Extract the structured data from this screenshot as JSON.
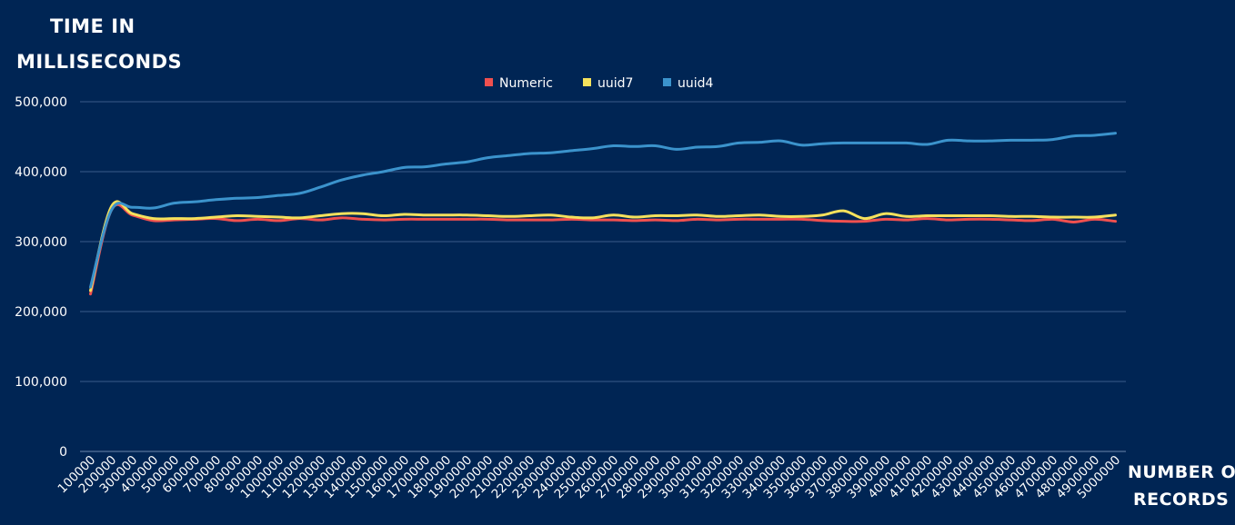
{
  "chart_data": {
    "type": "line",
    "ylabel_lines": [
      "TIME IN",
      "MILLISECONDS"
    ],
    "xlabel_lines": [
      "NUMBER OF",
      "RECORDS"
    ],
    "ylim": [
      0,
      500000
    ],
    "yticks": [
      0,
      100000,
      200000,
      300000,
      400000,
      500000
    ],
    "ytick_labels": [
      "0",
      "100,000",
      "200,000",
      "300,000",
      "400,000",
      "500,000"
    ],
    "grid": true,
    "legend_position": "top-center",
    "categories": [
      "100000",
      "200000",
      "300000",
      "400000",
      "500000",
      "600000",
      "700000",
      "800000",
      "900000",
      "1000000",
      "1100000",
      "1200000",
      "1300000",
      "1400000",
      "1500000",
      "1600000",
      "1700000",
      "1800000",
      "1900000",
      "2000000",
      "2100000",
      "2200000",
      "2300000",
      "2400000",
      "2500000",
      "2600000",
      "2700000",
      "2800000",
      "2900000",
      "3000000",
      "3100000",
      "3200000",
      "3300000",
      "3400000",
      "3500000",
      "3600000",
      "3700000",
      "3800000",
      "3900000",
      "4000000",
      "4100000",
      "4200000",
      "4300000",
      "4400000",
      "4500000",
      "4600000",
      "4700000",
      "4800000",
      "4900000",
      "5000000"
    ],
    "series": [
      {
        "name": "Numeric",
        "color": "#f0504f",
        "values": [
          225000,
          345000,
          338000,
          330000,
          331000,
          332000,
          333000,
          330000,
          332000,
          330000,
          333000,
          331000,
          334000,
          332000,
          331000,
          332000,
          332000,
          332000,
          332000,
          332000,
          331000,
          331000,
          331000,
          332000,
          331000,
          331000,
          330000,
          331000,
          330000,
          332000,
          331000,
          332000,
          332000,
          332000,
          332000,
          330000,
          329000,
          329000,
          332000,
          331000,
          333000,
          331000,
          332000,
          332000,
          331000,
          330000,
          332000,
          328000,
          332000,
          329000
        ]
      },
      {
        "name": "uuid7",
        "color": "#f5e15c",
        "values": [
          230000,
          350000,
          340000,
          333000,
          333000,
          333000,
          335000,
          337000,
          336000,
          335000,
          334000,
          337000,
          340000,
          340000,
          337000,
          339000,
          338000,
          338000,
          338000,
          337000,
          336000,
          337000,
          338000,
          335000,
          334000,
          338000,
          335000,
          337000,
          337000,
          338000,
          336000,
          337000,
          338000,
          336000,
          336000,
          338000,
          344000,
          333000,
          340000,
          336000,
          337000,
          337000,
          337000,
          337000,
          336000,
          336000,
          335000,
          335000,
          335000,
          338000
        ]
      },
      {
        "name": "uuid4",
        "color": "#3b93cc",
        "values": [
          235000,
          345000,
          349000,
          348000,
          355000,
          357000,
          360000,
          362000,
          363000,
          366000,
          369000,
          378000,
          388000,
          395000,
          400000,
          406000,
          407000,
          411000,
          414000,
          420000,
          423000,
          426000,
          427000,
          430000,
          433000,
          437000,
          436000,
          437000,
          432000,
          435000,
          436000,
          441000,
          442000,
          444000,
          438000,
          440000,
          441000,
          441000,
          441000,
          441000,
          439000,
          445000,
          444000,
          444000,
          445000,
          445000,
          446000,
          451000,
          452000,
          455000
        ]
      }
    ]
  }
}
